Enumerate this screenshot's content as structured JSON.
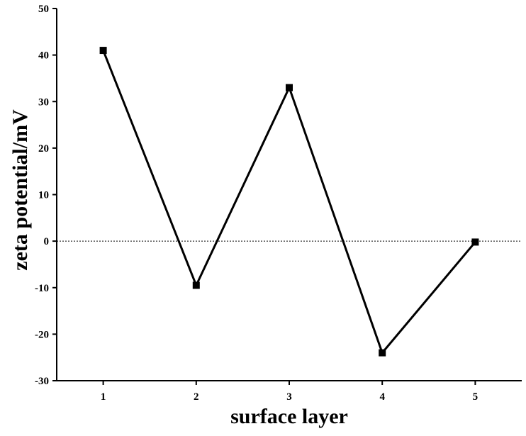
{
  "chart_data": {
    "type": "line",
    "title": "",
    "xlabel": "surface layer",
    "ylabel": "zeta potential/mV",
    "x": [
      1,
      2,
      3,
      4,
      5
    ],
    "series": [
      {
        "values": [
          41,
          -9.5,
          33,
          -24,
          -0.2
        ]
      }
    ],
    "xlim": [
      0.5,
      5.5
    ],
    "ylim": [
      -30,
      50
    ],
    "xticks": [
      "1",
      "2",
      "3",
      "4",
      "5"
    ],
    "yticks": [
      "-30",
      "-20",
      "-10",
      "0",
      "10",
      "20",
      "30",
      "40",
      "50"
    ],
    "reference_line": {
      "y": 0,
      "style": "dotted"
    },
    "marker": "square",
    "grid": false,
    "legend": "none",
    "colors": {
      "line": "#000000",
      "marker": "#000000",
      "axis": "#000000"
    }
  }
}
